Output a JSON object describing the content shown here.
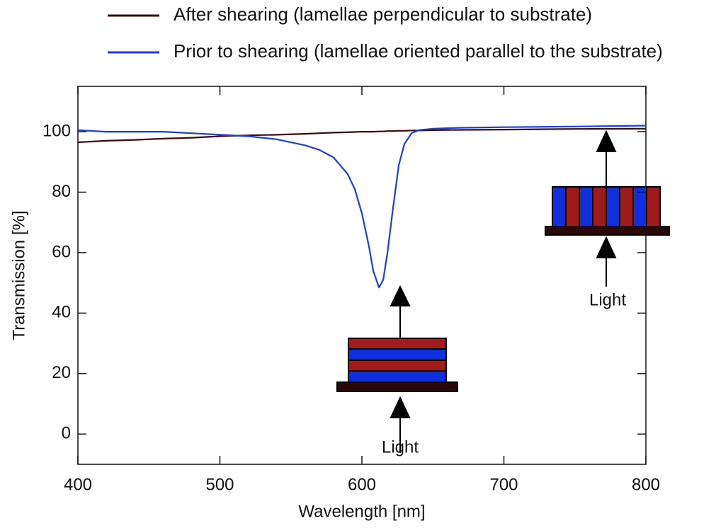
{
  "chart_data": {
    "type": "line",
    "x_label": "Wavelength [nm]",
    "y_label": "Transmission [%]",
    "x": [
      400,
      420,
      440,
      460,
      480,
      500,
      520,
      540,
      560,
      570,
      580,
      590,
      595,
      600,
      605,
      608,
      612,
      615,
      618,
      622,
      626,
      630,
      635,
      640,
      650,
      670,
      700,
      750,
      800
    ],
    "series": [
      {
        "name": "After shearing (lamellae perpendicular to substrate)",
        "color": "#3b0a0a",
        "values": [
          96.5,
          97,
          97.3,
          97.7,
          98,
          98.5,
          98.8,
          99,
          99.3,
          99.5,
          99.7,
          99.8,
          99.9,
          100,
          100,
          100,
          100.1,
          100.1,
          100.2,
          100.2,
          100.3,
          100.3,
          100.4,
          100.4,
          100.5,
          100.6,
          100.7,
          100.9,
          101
        ]
      },
      {
        "name": "Prior to shearing (lamellae oriented parallel to the substrate)",
        "color": "#1a3fe0",
        "values": [
          100.5,
          100,
          100,
          100,
          99.5,
          99,
          98.5,
          97.5,
          95.5,
          94,
          91.5,
          86,
          81,
          73,
          62,
          54,
          48.5,
          51,
          60,
          75,
          89,
          96,
          99.5,
          100.5,
          101,
          101.3,
          101.5,
          101.7,
          102
        ]
      }
    ],
    "xlim": [
      400,
      800
    ],
    "xticks": [
      400,
      500,
      600,
      700,
      800
    ],
    "ylim": [
      -10,
      115
    ],
    "yticks": [
      0,
      20,
      40,
      60,
      80,
      100
    ],
    "annotations": [
      "Light",
      "Light"
    ]
  }
}
